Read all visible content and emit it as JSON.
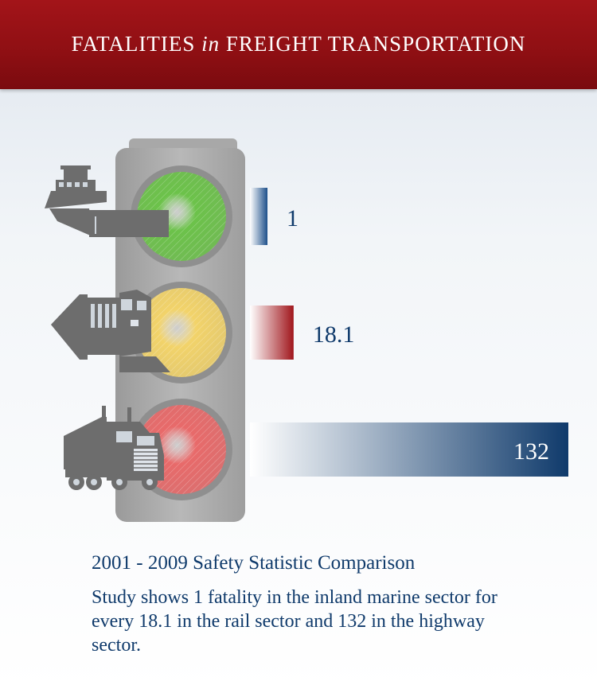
{
  "header": {
    "title_part1": "FATALITIES",
    "title_in": "in",
    "title_part2": "FREIGHT TRANSPORTATION"
  },
  "chart_data": {
    "type": "bar",
    "orientation": "horizontal",
    "categories": [
      "Inland Marine",
      "Rail",
      "Highway"
    ],
    "values": [
      1,
      18.1,
      132
    ],
    "labels": [
      "1",
      "18.1",
      "132"
    ],
    "colors": [
      "#1d4f8a",
      "#a0161c",
      "#0f3a6b"
    ],
    "icons": [
      "barge-icon",
      "train-icon",
      "truck-icon"
    ],
    "light_colors": [
      "#6cc24a",
      "#f2d36a",
      "#e86a6a"
    ],
    "xlim": [
      0,
      132
    ]
  },
  "caption": {
    "heading": "2001 - 2009 Safety Statistic Comparison",
    "body": "Study shows 1 fatality in the inland marine sector for every 18.1 in the rail sector and 132 in the highway sector."
  }
}
